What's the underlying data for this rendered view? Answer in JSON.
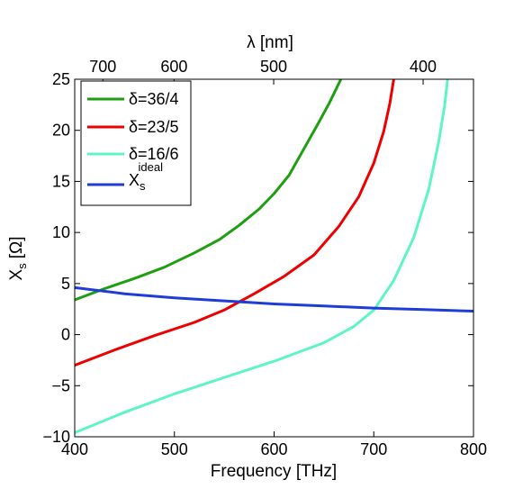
{
  "chart_data": {
    "type": "line",
    "xlabel": "Frequency [THz]",
    "ylabel_main": "X",
    "ylabel_sub": "s",
    "ylabel_unit": "[Ω]",
    "top_xlabel": "λ [nm]",
    "xlim": [
      400,
      800
    ],
    "ylim": [
      -10,
      25
    ],
    "x_ticks": [
      "400",
      "500",
      "600",
      "700",
      "800"
    ],
    "y_ticks": [
      "−10",
      "−5",
      "0",
      "5",
      "10",
      "15",
      "20",
      "25"
    ],
    "top_ticks": [
      {
        "label": "700",
        "nm": 700
      },
      {
        "label": "600",
        "nm": 600
      },
      {
        "label": "500",
        "nm": 500
      },
      {
        "label": "400",
        "nm": 400
      }
    ],
    "legend_position": "top-left",
    "series": [
      {
        "name": "δ=36/4",
        "color": "#1f9e12",
        "x": [
          400,
          430,
          460,
          490,
          520,
          545,
          565,
          585,
          600,
          615,
          630,
          645,
          655,
          662,
          667
        ],
        "y": [
          3.4,
          4.5,
          5.5,
          6.6,
          8.0,
          9.3,
          10.7,
          12.3,
          13.8,
          15.6,
          18.2,
          20.8,
          22.6,
          24.0,
          25.0
        ]
      },
      {
        "name": "δ=23/5",
        "color": "#ee0000",
        "x": [
          400,
          440,
          480,
          520,
          550,
          580,
          610,
          640,
          665,
          685,
          700,
          710,
          716,
          720
        ],
        "y": [
          -3.0,
          -1.5,
          -0.1,
          1.2,
          2.4,
          4.0,
          5.7,
          7.8,
          10.6,
          13.5,
          16.8,
          19.9,
          22.6,
          25.0
        ]
      },
      {
        "name": "δ=16/6",
        "color": "#5ef5c4",
        "x": [
          400,
          450,
          500,
          550,
          600,
          650,
          680,
          700,
          720,
          740,
          755,
          765,
          771,
          774
        ],
        "y": [
          -9.6,
          -7.6,
          -5.8,
          -4.2,
          -2.6,
          -0.8,
          0.8,
          2.4,
          5.3,
          9.5,
          14.2,
          18.8,
          22.4,
          25.0
        ]
      },
      {
        "name_main": "X",
        "name_sub": "s",
        "name_sup": "ideal",
        "color": "#1f3dd6",
        "x": [
          400,
          450,
          500,
          550,
          600,
          650,
          700,
          750,
          800
        ],
        "y": [
          4.6,
          4.0,
          3.6,
          3.3,
          3.0,
          2.8,
          2.6,
          2.45,
          2.3
        ]
      }
    ]
  }
}
